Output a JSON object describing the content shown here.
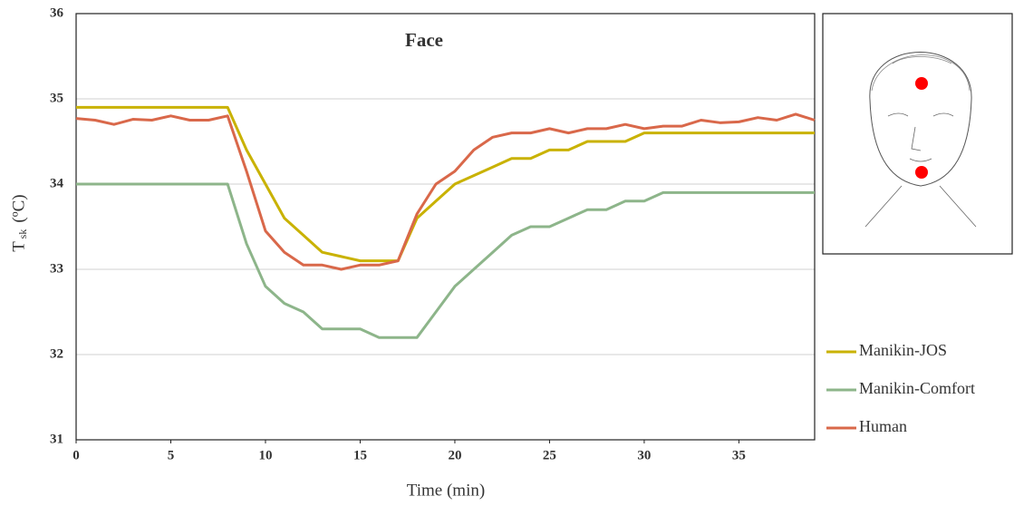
{
  "chart_data": {
    "type": "line",
    "title": "Face",
    "xlabel": "Time (min)",
    "ylabel": "T",
    "ylabel_subscript": "sk",
    "ylabel_unit": "(ºC)",
    "x": [
      0,
      1,
      2,
      3,
      4,
      5,
      6,
      7,
      8,
      9,
      10,
      11,
      12,
      13,
      14,
      15,
      16,
      17,
      18,
      19,
      20,
      21,
      22,
      23,
      24,
      25,
      26,
      27,
      28,
      29,
      30,
      31,
      32,
      33,
      34,
      35,
      36,
      37,
      38,
      39
    ],
    "series": [
      {
        "name": "Manikin-JOS",
        "color": "#c9b200",
        "values": [
          34.9,
          34.9,
          34.9,
          34.9,
          34.9,
          34.9,
          34.9,
          34.9,
          34.9,
          34.4,
          34.0,
          33.6,
          33.4,
          33.2,
          33.15,
          33.1,
          33.1,
          33.1,
          33.6,
          33.8,
          34.0,
          34.1,
          34.2,
          34.3,
          34.3,
          34.4,
          34.4,
          34.5,
          34.5,
          34.5,
          34.6,
          34.6,
          34.6,
          34.6,
          34.6,
          34.6,
          34.6,
          34.6,
          34.6,
          34.6
        ]
      },
      {
        "name": "Manikin-Comfort",
        "color": "#8db58a",
        "values": [
          34.0,
          34.0,
          34.0,
          34.0,
          34.0,
          34.0,
          34.0,
          34.0,
          34.0,
          33.3,
          32.8,
          32.6,
          32.5,
          32.3,
          32.3,
          32.3,
          32.2,
          32.2,
          32.2,
          32.5,
          32.8,
          33.0,
          33.2,
          33.4,
          33.5,
          33.5,
          33.6,
          33.7,
          33.7,
          33.8,
          33.8,
          33.9,
          33.9,
          33.9,
          33.9,
          33.9,
          33.9,
          33.9,
          33.9,
          33.9
        ]
      },
      {
        "name": "Human",
        "color": "#d9684a",
        "values": [
          34.77,
          34.75,
          34.7,
          34.76,
          34.75,
          34.8,
          34.75,
          34.75,
          34.8,
          34.15,
          33.45,
          33.2,
          33.05,
          33.05,
          33.0,
          33.05,
          33.05,
          33.1,
          33.65,
          34.0,
          34.15,
          34.4,
          34.55,
          34.6,
          34.6,
          34.65,
          34.6,
          34.65,
          34.65,
          34.7,
          34.65,
          34.68,
          34.68,
          34.75,
          34.72,
          34.73,
          34.78,
          34.75,
          34.82,
          34.75
        ]
      }
    ],
    "xlim": [
      0,
      39
    ],
    "xticks": [
      0,
      5,
      10,
      15,
      20,
      25,
      30,
      35
    ],
    "ylim": [
      31,
      36
    ],
    "yticks": [
      31,
      32,
      33,
      34,
      35,
      36
    ],
    "grid": true
  }
}
